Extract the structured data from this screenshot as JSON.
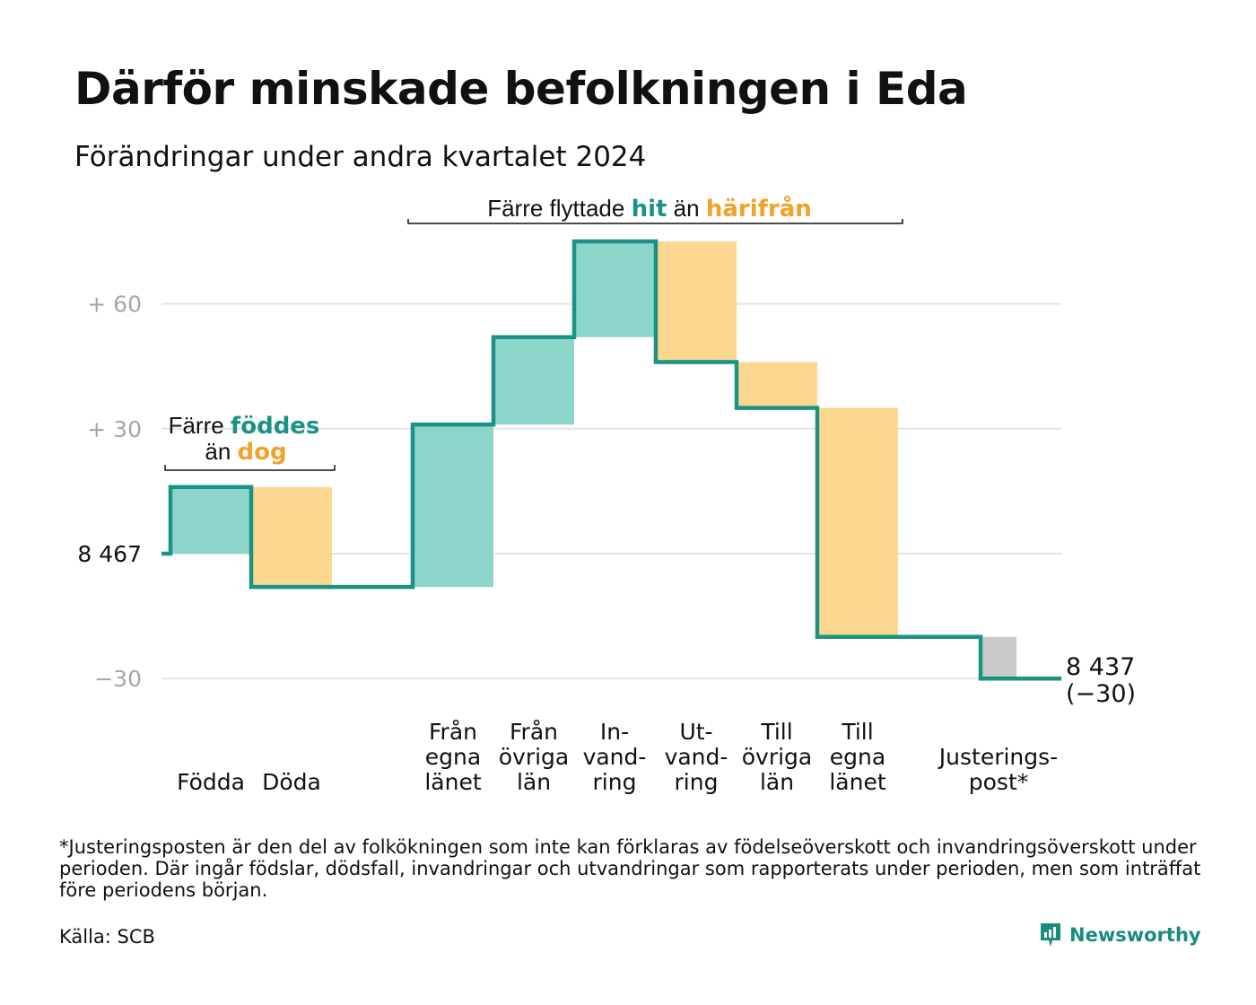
{
  "title": "Därför minskade befolkningen i Eda",
  "subtitle": "Förändringar under andra kvartalet 2024",
  "chart_data": {
    "type": "waterfall",
    "baseline": 8467,
    "baseline_label": "8  467",
    "end_value": 8437,
    "end_label": [
      "8 437",
      "(−30)"
    ],
    "ylim": [
      -30,
      80
    ],
    "yticks": [
      {
        "value": 60,
        "label": "+  60"
      },
      {
        "value": 30,
        "label": "+  30"
      },
      {
        "value": -30,
        "label": "−30"
      }
    ],
    "steps": [
      {
        "label": [
          "Födda"
        ],
        "change": 16,
        "kind": "in"
      },
      {
        "label": [
          "Döda"
        ],
        "change": -24,
        "kind": "out"
      },
      {
        "label": [
          "Från",
          "egna",
          "länet"
        ],
        "change": 39,
        "kind": "in"
      },
      {
        "label": [
          "Från",
          "övriga",
          "län"
        ],
        "change": 21,
        "kind": "in"
      },
      {
        "label": [
          "In-",
          "vand-",
          "ring"
        ],
        "change": 23,
        "kind": "in"
      },
      {
        "label": [
          "Ut-",
          "vand-",
          "ring"
        ],
        "change": -29,
        "kind": "out"
      },
      {
        "label": [
          "Till",
          "övriga",
          "län"
        ],
        "change": -11,
        "kind": "out"
      },
      {
        "label": [
          "Till",
          "egna",
          "länet"
        ],
        "change": -55,
        "kind": "out"
      },
      {
        "label": [
          "Justerings-",
          "post*"
        ],
        "change": -10,
        "kind": "adjust"
      }
    ],
    "annotations": [
      {
        "parts": [
          {
            "text": "Färre ",
            "style": "plain"
          },
          {
            "text": "föddes",
            "style": "in"
          }
        ],
        "line2": [
          {
            "text": "än ",
            "style": "plain"
          },
          {
            "text": "dog",
            "style": "out"
          }
        ]
      },
      {
        "parts": [
          {
            "text": "Färre flyttade ",
            "style": "plain"
          },
          {
            "text": "hit",
            "style": "in"
          },
          {
            "text": " än ",
            "style": "plain"
          },
          {
            "text": "härifrån",
            "style": "out"
          }
        ]
      }
    ],
    "colors": {
      "in_fill": "#8cd5cb",
      "out_fill": "#fbd78f",
      "adjust_fill": "#c9c9c9",
      "line": "#1a9384",
      "in_text": "#1a9384",
      "out_text": "#f0a229",
      "grid": "#e3e3e3",
      "tick_text": "#a6a6a6"
    }
  },
  "footnote": "*Justeringsposten är den del av folkökningen som inte kan förklaras av födelseöverskott och invandringsöverskott under perioden. Där ingår födslar, dödsfall, invandringar och utvandringar som rapporterats under perioden, men som inträffat före periodens början.",
  "source": "Källa: SCB",
  "logo": {
    "text": "Newsworthy",
    "icon": "newsworthy-logo-icon"
  }
}
